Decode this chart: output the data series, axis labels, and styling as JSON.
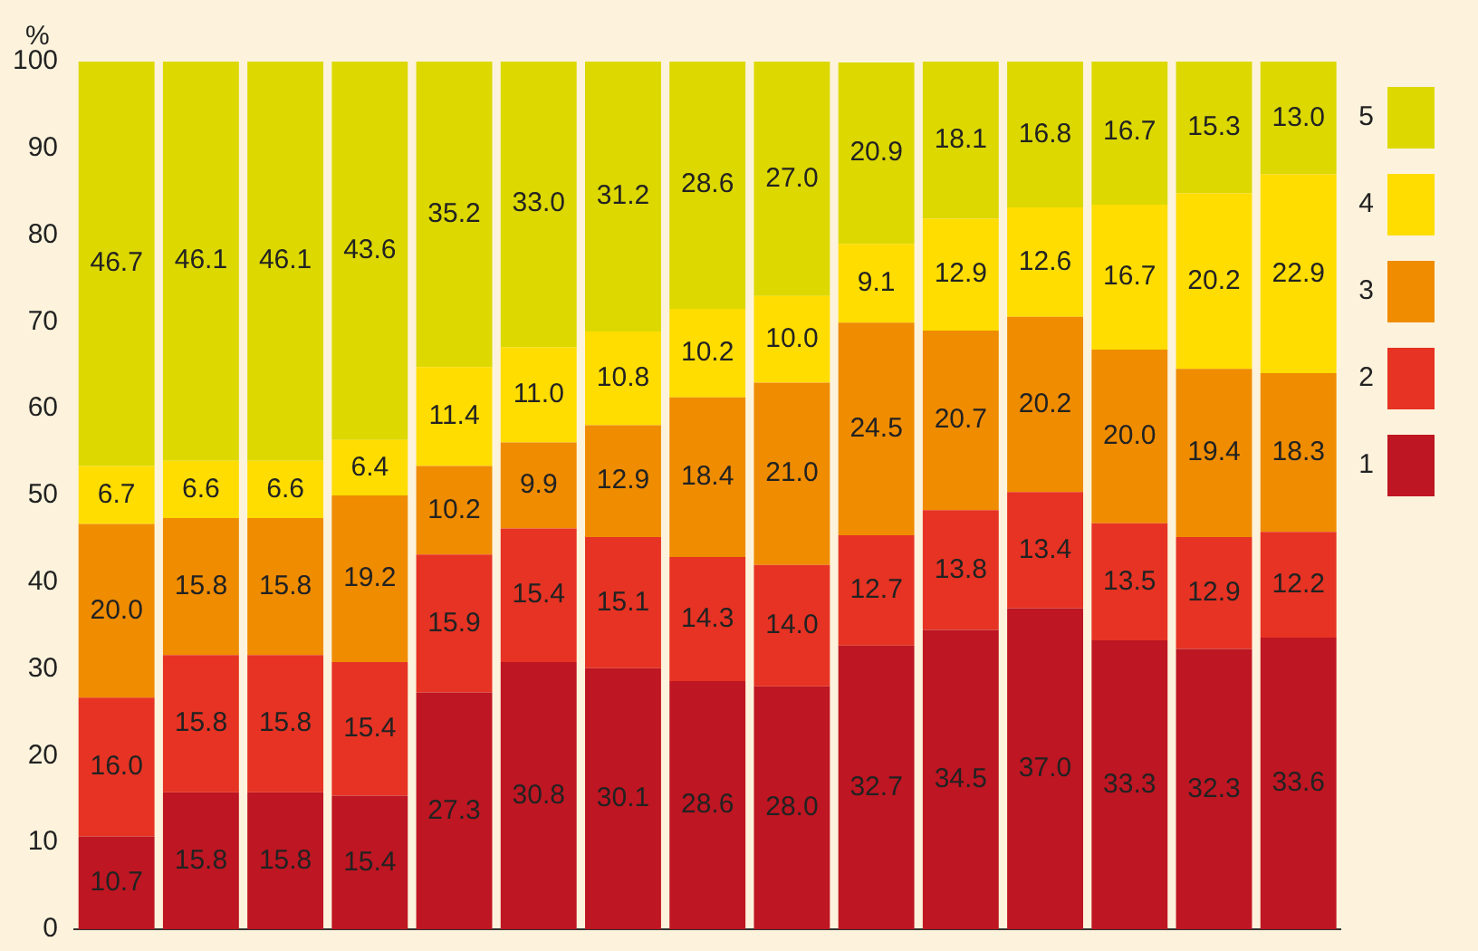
{
  "chart_data": {
    "type": "bar",
    "stacked": true,
    "ylabel": "%",
    "categories": [
      null,
      null,
      null,
      null,
      null,
      null,
      null,
      null,
      null,
      null,
      null,
      null,
      null,
      null,
      null
    ],
    "series": [
      {
        "name": "1",
        "color": "#be1622",
        "values": [
          10.7,
          15.8,
          15.8,
          15.4,
          27.3,
          30.8,
          30.1,
          28.6,
          28.0,
          32.7,
          34.5,
          37.0,
          33.3,
          32.3,
          33.6
        ],
        "value_labels": [
          "10.7",
          "15.8",
          "15.8",
          "15.4",
          "27.3",
          "30.8",
          "30.1",
          "28.6",
          "28.0",
          "32.7",
          "34.5",
          "37.0",
          "33.3",
          "32.3",
          "33.6"
        ]
      },
      {
        "name": "2",
        "color": "#e63323",
        "values": [
          16.0,
          15.8,
          15.8,
          15.4,
          15.9,
          15.4,
          15.1,
          14.3,
          14.0,
          12.7,
          13.8,
          13.4,
          13.5,
          12.9,
          12.2
        ],
        "value_labels": [
          "16.0",
          "15.8",
          "15.8",
          "15.4",
          "15.9",
          "15.4",
          "15.1",
          "14.3",
          "14.0",
          "12.7",
          "13.8",
          "13.4",
          "13.5",
          "12.9",
          "12.2"
        ]
      },
      {
        "name": "3",
        "color": "#ef8c00",
        "values": [
          20.0,
          15.8,
          15.8,
          19.2,
          10.2,
          9.9,
          12.9,
          18.4,
          21.0,
          24.5,
          20.7,
          20.2,
          20.0,
          19.4,
          18.3
        ],
        "value_labels": [
          "20.0",
          "15.8",
          "15.8",
          "19.2",
          "10.2",
          "9.9",
          "12.9",
          "18.4",
          "21.0",
          "24.5",
          "20.7",
          "20.2",
          "20.0",
          "19.4",
          "18.3"
        ]
      },
      {
        "name": "4",
        "color": "#ffdd00",
        "values": [
          6.7,
          6.6,
          6.6,
          6.4,
          11.4,
          11.0,
          10.8,
          10.2,
          10.0,
          9.1,
          12.9,
          12.6,
          16.7,
          20.2,
          22.9
        ],
        "value_labels": [
          "6.7",
          "6.6",
          "6.6",
          "6.4",
          "11.4",
          "11.0",
          "10.8",
          "10.2",
          "10.0",
          "9.1",
          "12.9",
          "12.6",
          "16.7",
          "20.2",
          "22.9"
        ]
      },
      {
        "name": "5",
        "color": "#dcd800",
        "values": [
          46.7,
          46.1,
          46.1,
          43.6,
          35.2,
          33.0,
          31.2,
          28.6,
          27.0,
          20.9,
          18.1,
          16.8,
          16.7,
          15.3,
          13.0
        ],
        "value_labels": [
          "46.7",
          "46.1",
          "46.1",
          "43.6",
          "35.2",
          "33.0",
          "31.2",
          "28.6",
          "27.0",
          "20.9",
          "18.1",
          "16.8",
          "16.7",
          "15.3",
          "13.0"
        ]
      }
    ],
    "ylim": [
      0,
      100
    ],
    "yticks": [
      0,
      10,
      20,
      30,
      40,
      50,
      60,
      70,
      80,
      90,
      100
    ],
    "grid": false,
    "legend": "right",
    "tick_labels": "y"
  }
}
